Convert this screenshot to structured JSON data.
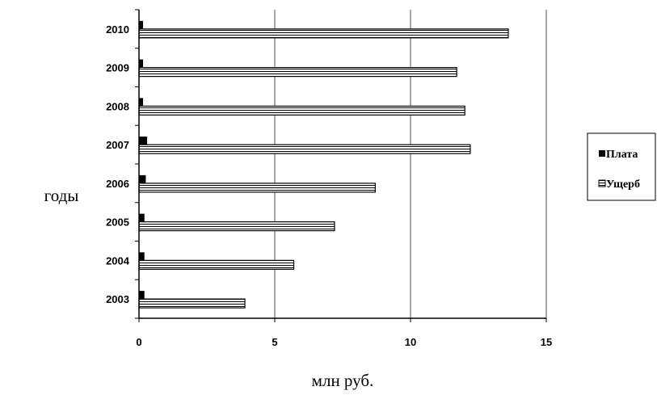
{
  "chart_data": {
    "type": "bar",
    "orientation": "horizontal",
    "categories": [
      "2003",
      "2004",
      "2005",
      "2006",
      "2007",
      "2008",
      "2009",
      "2010"
    ],
    "series": [
      {
        "name": "Плата",
        "values": [
          0.2,
          0.2,
          0.2,
          0.25,
          0.3,
          0.15,
          0.15,
          0.15
        ],
        "color": "#000000",
        "pattern": "solid"
      },
      {
        "name": "Ущерб",
        "values": [
          3.9,
          5.7,
          7.2,
          8.7,
          12.2,
          12.0,
          11.7,
          13.6
        ],
        "color": "#ffffff",
        "pattern": "horizontal-stripes"
      }
    ],
    "xlabel": "млн руб.",
    "ylabel": "годы",
    "xlim": [
      0,
      15
    ],
    "xticks": [
      "0",
      "5",
      "10",
      "15"
    ],
    "grid": "vertical",
    "legend": "right"
  }
}
